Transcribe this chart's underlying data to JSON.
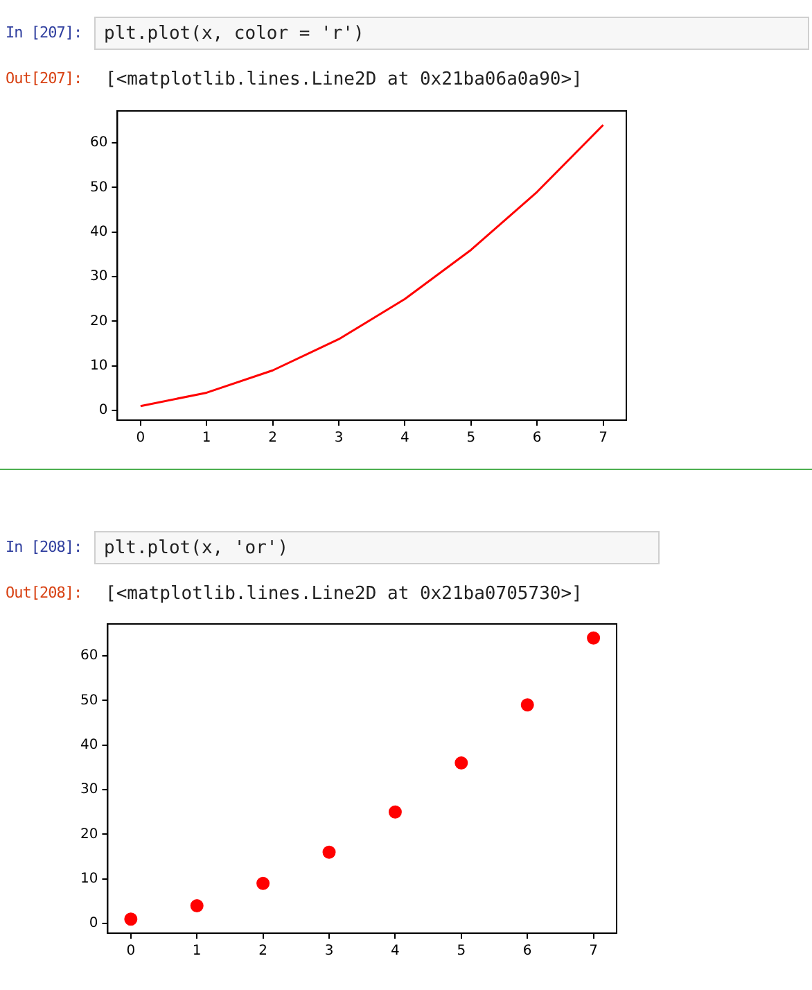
{
  "chart_data": [
    {
      "type": "line",
      "annotations": [
        "In [207]:",
        "plt.plot(x, color = 'r')",
        "Out[207]:",
        "[<matplotlib.lines.Line2D at 0x21ba06a0a90>]"
      ],
      "x": [
        0,
        1,
        2,
        3,
        4,
        5,
        6,
        7
      ],
      "values": [
        1,
        4,
        9,
        16,
        25,
        36,
        49,
        64
      ],
      "color": "#ff0000",
      "marker": "none",
      "line_style": "solid",
      "xlim": [
        -0.35,
        7.35
      ],
      "ylim": [
        -2.15,
        67.15
      ],
      "xticks": [
        0,
        1,
        2,
        3,
        4,
        5,
        6,
        7
      ],
      "yticks": [
        0,
        10,
        20,
        30,
        40,
        50,
        60
      ],
      "grid": false,
      "legend": false
    },
    {
      "type": "scatter",
      "annotations": [
        "In [208]:",
        "plt.plot(x, 'or')",
        "Out[208]:",
        "[<matplotlib.lines.Line2D at 0x21ba0705730>]"
      ],
      "x": [
        0,
        1,
        2,
        3,
        4,
        5,
        6,
        7
      ],
      "values": [
        1,
        4,
        9,
        16,
        25,
        36,
        49,
        64
      ],
      "color": "#ff0000",
      "marker": "circle",
      "xlim": [
        -0.35,
        7.35
      ],
      "ylim": [
        -2.15,
        67.15
      ],
      "xticks": [
        0,
        1,
        2,
        3,
        4,
        5,
        6,
        7
      ],
      "yticks": [
        0,
        10,
        20,
        30,
        40,
        50,
        60
      ],
      "grid": false,
      "legend": false
    }
  ]
}
